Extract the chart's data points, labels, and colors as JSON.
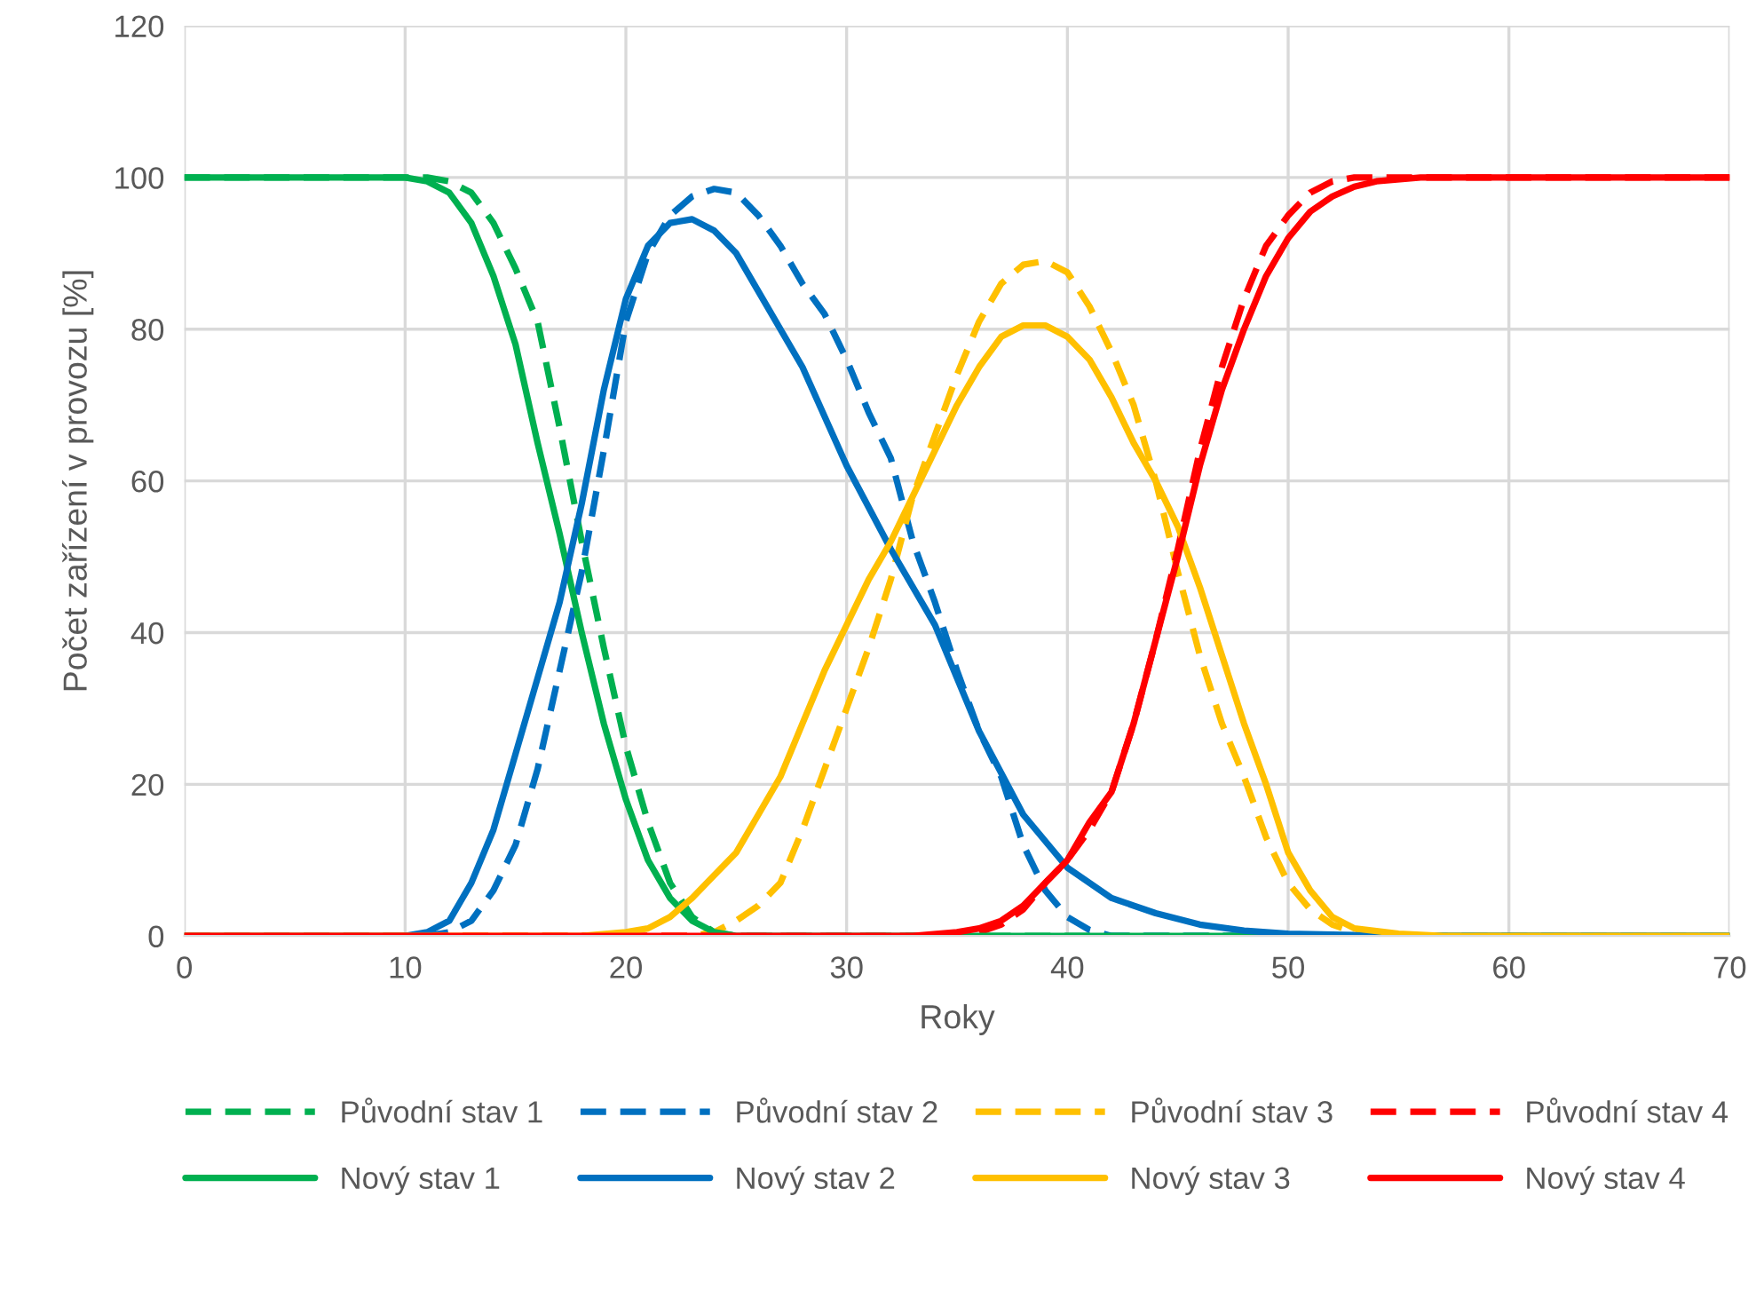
{
  "chart_data": {
    "type": "line",
    "xlabel": "Roky",
    "ylabel": "Počet zařízení v provozu [%]",
    "xlim": [
      0,
      70
    ],
    "ylim": [
      0,
      120
    ],
    "xticks": [
      0,
      10,
      20,
      30,
      40,
      50,
      60,
      70
    ],
    "yticks": [
      0,
      20,
      40,
      60,
      80,
      100,
      120
    ],
    "grid": true,
    "legend": "bottom",
    "marker": "none",
    "series": [
      {
        "name": "Původní stav 1",
        "color": "#00b050",
        "line_style": "dashed",
        "x": [
          0,
          10,
          11,
          12,
          13,
          14,
          15,
          16,
          17,
          18,
          19,
          20,
          21,
          22,
          23,
          24,
          25,
          70
        ],
        "values": [
          100,
          100,
          100,
          99.5,
          98,
          94,
          88,
          81,
          67,
          52,
          38,
          25,
          15,
          7,
          2.5,
          0.5,
          0,
          0
        ]
      },
      {
        "name": "Původní stav 2",
        "color": "#0070c0",
        "line_style": "dashed",
        "x": [
          0,
          11,
          12,
          13,
          14,
          15,
          16,
          17,
          18,
          19,
          20,
          21,
          22,
          23,
          24,
          25,
          26,
          27,
          28,
          29,
          30,
          31,
          32,
          33,
          34,
          35,
          36,
          37,
          38,
          39,
          40,
          41,
          42,
          70
        ],
        "values": [
          0,
          0,
          0.5,
          2,
          6,
          12,
          22,
          35,
          48,
          64,
          81,
          90,
          95,
          97.5,
          98.5,
          98,
          95,
          91,
          86,
          82,
          76,
          69,
          63,
          52,
          44,
          35,
          27,
          21,
          12,
          6,
          2.5,
          0.8,
          0,
          0
        ]
      },
      {
        "name": "Původní stav 3",
        "color": "#ffc000",
        "line_style": "dashed",
        "x": [
          0,
          23,
          24,
          25,
          26,
          27,
          28,
          29,
          30,
          31,
          32,
          33,
          34,
          35,
          36,
          37,
          38,
          39,
          40,
          41,
          42,
          43,
          44,
          45,
          46,
          47,
          48,
          49,
          50,
          51,
          52,
          53,
          54,
          70
        ],
        "values": [
          0,
          0,
          0.5,
          2,
          4,
          7,
          14,
          22,
          30,
          38,
          47,
          58,
          66,
          74,
          81,
          86,
          88.5,
          89,
          87.5,
          83,
          77,
          70,
          60,
          48,
          37,
          28,
          21,
          13,
          7,
          3.5,
          1.5,
          0.5,
          0,
          0
        ]
      },
      {
        "name": "Původní stav 4",
        "color": "#ff0000",
        "line_style": "dashed",
        "x": [
          0,
          34,
          36,
          37,
          38,
          39,
          40,
          41,
          42,
          43,
          44,
          45,
          46,
          47,
          48,
          49,
          50,
          51,
          52,
          53,
          70
        ],
        "values": [
          0,
          0,
          0.5,
          1.5,
          3.5,
          7,
          10,
          14,
          19,
          28,
          39,
          51,
          64,
          75,
          84,
          91,
          95,
          98,
          99.5,
          100,
          100
        ]
      },
      {
        "name": "Nový stav 1",
        "color": "#00b050",
        "line_style": "solid",
        "x": [
          0,
          10,
          11,
          12,
          13,
          14,
          15,
          16,
          17,
          18,
          19,
          20,
          21,
          22,
          23,
          24,
          25,
          70
        ],
        "values": [
          100,
          100,
          99.5,
          98,
          94,
          87,
          78,
          65,
          53,
          40,
          28,
          18,
          10,
          5,
          2,
          0.5,
          0,
          0
        ]
      },
      {
        "name": "Nový stav 2",
        "color": "#0070c0",
        "line_style": "solid",
        "x": [
          0,
          10,
          11,
          12,
          13,
          14,
          15,
          16,
          17,
          18,
          19,
          20,
          21,
          22,
          23,
          24,
          25,
          26,
          28,
          30,
          32,
          34,
          36,
          38,
          40,
          42,
          44,
          46,
          48,
          50,
          55,
          70
        ],
        "values": [
          0,
          0,
          0.5,
          2,
          7,
          14,
          24,
          34,
          44,
          57,
          72,
          84,
          91,
          94,
          94.5,
          93,
          90,
          85,
          75,
          62,
          51,
          41,
          27,
          16,
          9,
          5,
          3,
          1.5,
          0.7,
          0.3,
          0,
          0
        ]
      },
      {
        "name": "Nový stav 3",
        "color": "#ffc000",
        "line_style": "solid",
        "x": [
          0,
          18,
          20,
          21,
          22,
          23,
          24,
          25,
          26,
          27,
          28,
          29,
          30,
          31,
          32,
          33,
          34,
          35,
          36,
          37,
          38,
          39,
          40,
          41,
          42,
          43,
          44,
          45,
          46,
          47,
          48,
          49,
          50,
          51,
          52,
          53,
          55,
          57,
          70
        ],
        "values": [
          0,
          0,
          0.5,
          1,
          2.5,
          5,
          8,
          11,
          16,
          21,
          28,
          35,
          41,
          47,
          52,
          58,
          64,
          70,
          75,
          79,
          80.5,
          80.5,
          79,
          76,
          71,
          65,
          60,
          54,
          46,
          37,
          28,
          20,
          11,
          6,
          2.5,
          1,
          0.3,
          0,
          0
        ]
      },
      {
        "name": "Nový stav 4",
        "color": "#ff0000",
        "line_style": "solid",
        "x": [
          0,
          33,
          35,
          36,
          37,
          38,
          39,
          40,
          41,
          42,
          43,
          44,
          45,
          46,
          47,
          48,
          49,
          50,
          51,
          52,
          53,
          54,
          56,
          70
        ],
        "values": [
          0,
          0,
          0.5,
          1,
          2,
          4,
          7,
          10,
          15,
          19,
          28,
          39,
          50,
          62,
          72,
          80,
          87,
          92,
          95.5,
          97.5,
          98.8,
          99.5,
          100,
          100
        ]
      }
    ]
  }
}
